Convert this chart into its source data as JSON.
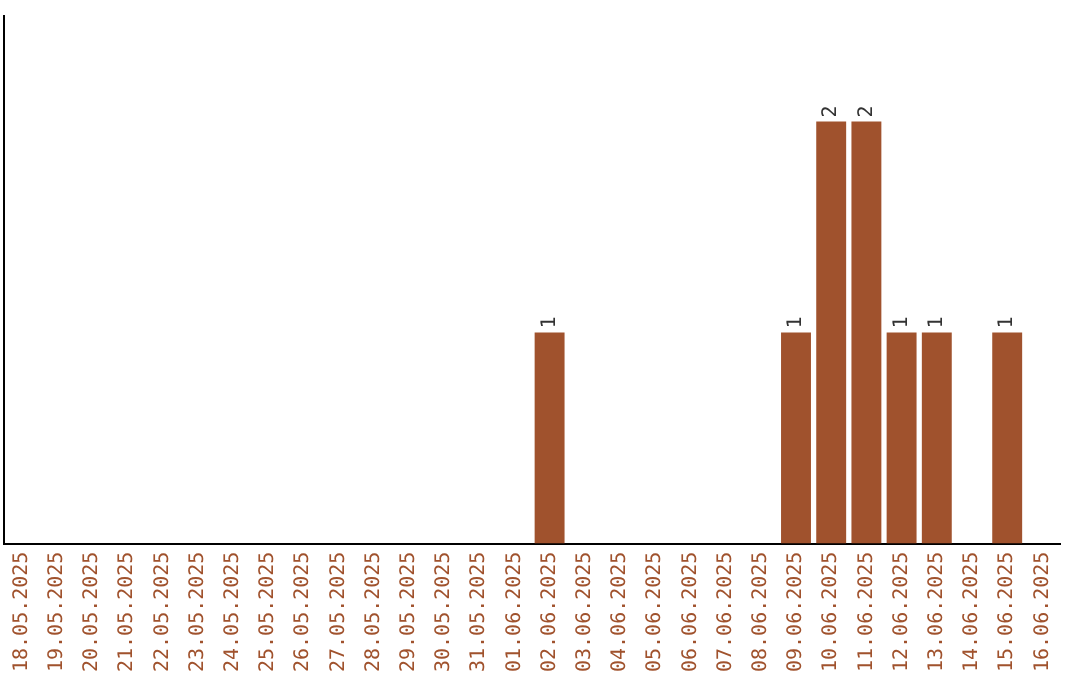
{
  "chart_data": {
    "type": "bar",
    "categories": [
      "18.05.2025",
      "19.05.2025",
      "20.05.2025",
      "21.05.2025",
      "22.05.2025",
      "23.05.2025",
      "24.05.2025",
      "25.05.2025",
      "26.05.2025",
      "27.05.2025",
      "28.05.2025",
      "29.05.2025",
      "30.05.2025",
      "31.05.2025",
      "01.06.2025",
      "02.06.2025",
      "03.06.2025",
      "04.06.2025",
      "05.06.2025",
      "06.06.2025",
      "07.06.2025",
      "08.06.2025",
      "09.06.2025",
      "10.06.2025",
      "11.06.2025",
      "12.06.2025",
      "13.06.2025",
      "14.06.2025",
      "15.06.2025",
      "16.06.2025"
    ],
    "values": [
      null,
      null,
      null,
      null,
      null,
      null,
      null,
      null,
      null,
      null,
      null,
      null,
      null,
      null,
      null,
      1,
      null,
      null,
      null,
      null,
      null,
      null,
      1,
      2,
      2,
      1,
      1,
      null,
      1,
      null
    ],
    "data_labels": true,
    "color": "#a0522d",
    "grid": false,
    "legend": false,
    "tick_labels": "x"
  }
}
